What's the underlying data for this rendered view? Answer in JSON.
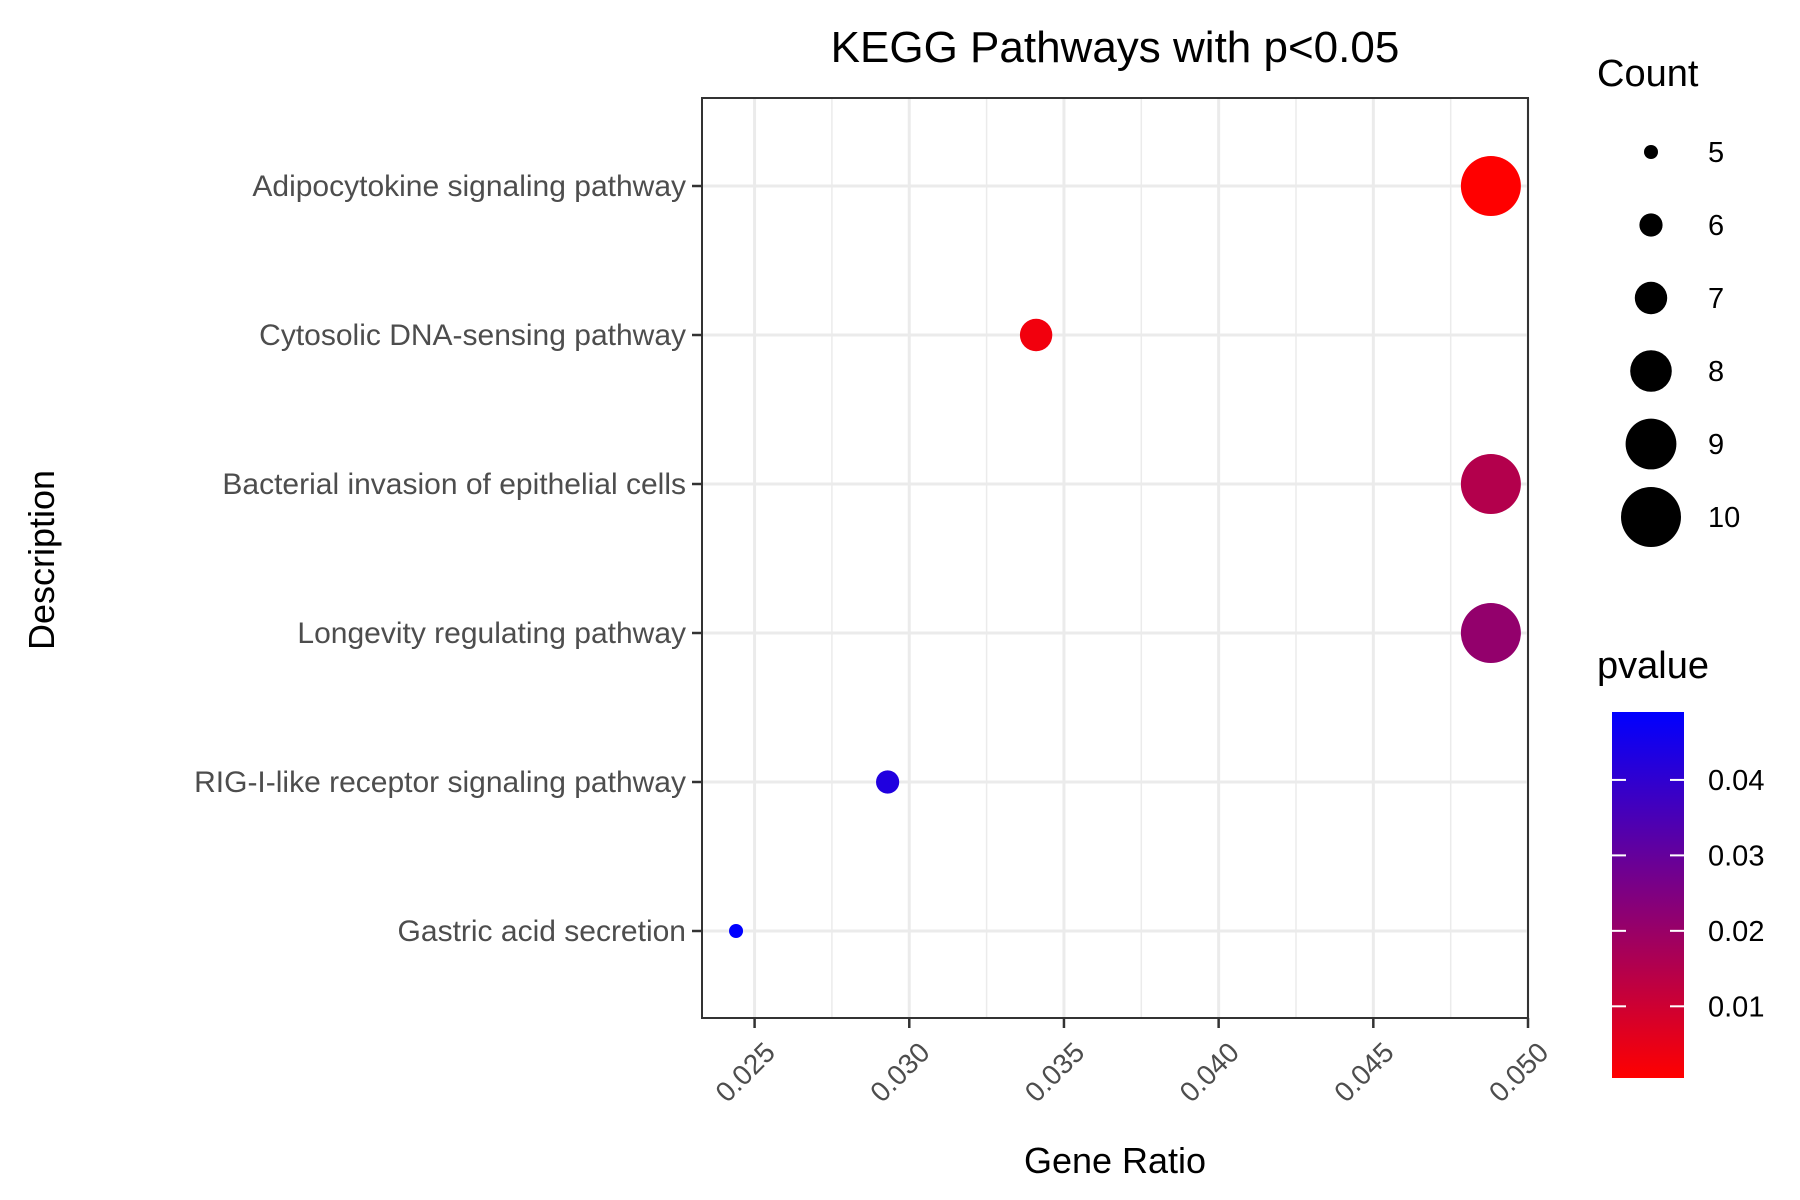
{
  "chart_data": {
    "type": "scatter",
    "title": "KEGG Pathways with p<0.05",
    "xlabel": "Gene Ratio",
    "ylabel": "Description",
    "xlim": [
      0.0233,
      0.05
    ],
    "x_ticks": [
      0.025,
      0.03,
      0.035,
      0.04,
      0.045,
      0.05
    ],
    "x_tick_labels": [
      "0.025",
      "0.030",
      "0.035",
      "0.040",
      "0.045",
      "0.050"
    ],
    "categories": [
      "Adipocytokine signaling pathway",
      "Cytosolic DNA-sensing pathway",
      "Bacterial invasion of epithelial cells",
      "Longevity regulating pathway",
      "RIG-I-like receptor signaling pathway",
      "Gastric acid secretion"
    ],
    "points": [
      {
        "description": "Adipocytokine signaling pathway",
        "gene_ratio": 0.0488,
        "count": 10,
        "pvalue": 0.0005
      },
      {
        "description": "Cytosolic DNA-sensing pathway",
        "gene_ratio": 0.0341,
        "count": 7,
        "pvalue": 0.003
      },
      {
        "description": "Bacterial invasion of epithelial cells",
        "gene_ratio": 0.0488,
        "count": 10,
        "pvalue": 0.015
      },
      {
        "description": "Longevity regulating pathway",
        "gene_ratio": 0.0488,
        "count": 10,
        "pvalue": 0.021
      },
      {
        "description": "RIG-I-like receptor signaling pathway",
        "gene_ratio": 0.0293,
        "count": 6,
        "pvalue": 0.043
      },
      {
        "description": "Gastric acid secretion",
        "gene_ratio": 0.0244,
        "count": 5,
        "pvalue": 0.049
      }
    ],
    "legend_size": {
      "title": "Count",
      "values": [
        5,
        6,
        7,
        8,
        9,
        10
      ],
      "labels": [
        "5",
        "6",
        "7",
        "8",
        "9",
        "10"
      ]
    },
    "legend_color": {
      "title": "pvalue",
      "range": [
        0.0005,
        0.049
      ],
      "ticks": [
        0.04,
        0.03,
        0.02,
        0.01
      ],
      "tick_labels": [
        "0.04",
        "0.03",
        "0.02",
        "0.01"
      ],
      "low_color": "#ff0000",
      "high_color": "#0000ff"
    },
    "grid": true,
    "legend_position": "right",
    "colors": {
      "panel_border": "#333333",
      "grid": "#ebebeb",
      "tick_text": "#4d4d4d"
    }
  }
}
